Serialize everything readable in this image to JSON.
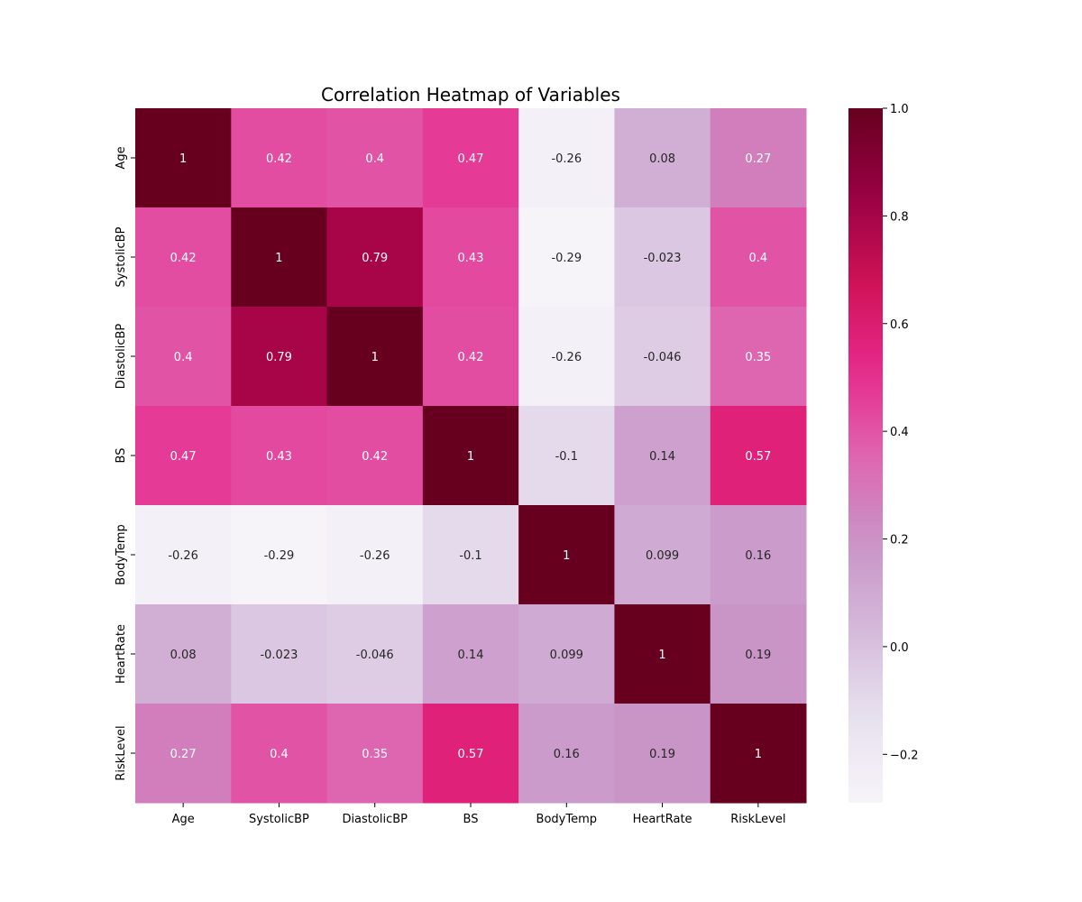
{
  "chart_data": {
    "type": "heatmap",
    "title": "Correlation Heatmap of Variables",
    "xlabel": "",
    "ylabel": "",
    "x_categories": [
      "Age",
      "SystolicBP",
      "DiastolicBP",
      "BS",
      "BodyTemp",
      "HeartRate",
      "RiskLevel"
    ],
    "y_categories": [
      "Age",
      "SystolicBP",
      "DiastolicBP",
      "BS",
      "BodyTemp",
      "HeartRate",
      "RiskLevel"
    ],
    "values": [
      [
        1,
        0.42,
        0.4,
        0.47,
        -0.26,
        0.08,
        0.27
      ],
      [
        0.42,
        1,
        0.79,
        0.43,
        -0.29,
        -0.023,
        0.4
      ],
      [
        0.4,
        0.79,
        1,
        0.42,
        -0.26,
        -0.046,
        0.35
      ],
      [
        0.47,
        0.43,
        0.42,
        1,
        -0.1,
        0.14,
        0.57
      ],
      [
        -0.26,
        -0.29,
        -0.26,
        -0.1,
        1,
        0.099,
        0.16
      ],
      [
        0.08,
        -0.023,
        -0.046,
        0.14,
        0.099,
        1,
        0.19
      ],
      [
        0.27,
        0.4,
        0.35,
        0.57,
        0.16,
        0.19,
        1
      ]
    ],
    "annotations": [
      [
        "1",
        "0.42",
        "0.4",
        "0.47",
        "-0.26",
        "0.08",
        "0.27"
      ],
      [
        "0.42",
        "1",
        "0.79",
        "0.43",
        "-0.29",
        "-0.023",
        "0.4"
      ],
      [
        "0.4",
        "0.79",
        "1",
        "0.42",
        "-0.26",
        "-0.046",
        "0.35"
      ],
      [
        "0.47",
        "0.43",
        "0.42",
        "1",
        "-0.1",
        "0.14",
        "0.57"
      ],
      [
        "-0.26",
        "-0.29",
        "-0.26",
        "-0.1",
        "1",
        "0.099",
        "0.16"
      ],
      [
        "0.08",
        "-0.023",
        "-0.046",
        "0.14",
        "0.099",
        "1",
        "0.19"
      ],
      [
        "0.27",
        "0.4",
        "0.35",
        "0.57",
        "0.16",
        "0.19",
        "1"
      ]
    ],
    "colormap": "PuRd",
    "color_range": [
      -0.29,
      1
    ],
    "colorbar_ticks": [
      1.0,
      0.8,
      0.6,
      0.4,
      0.2,
      0.0,
      -0.2
    ],
    "colorbar_tick_labels": [
      "1.0",
      "0.8",
      "0.6",
      "0.4",
      "0.2",
      "0.0",
      "−0.2"
    ],
    "grid": false,
    "colorbar_placement": "right"
  }
}
